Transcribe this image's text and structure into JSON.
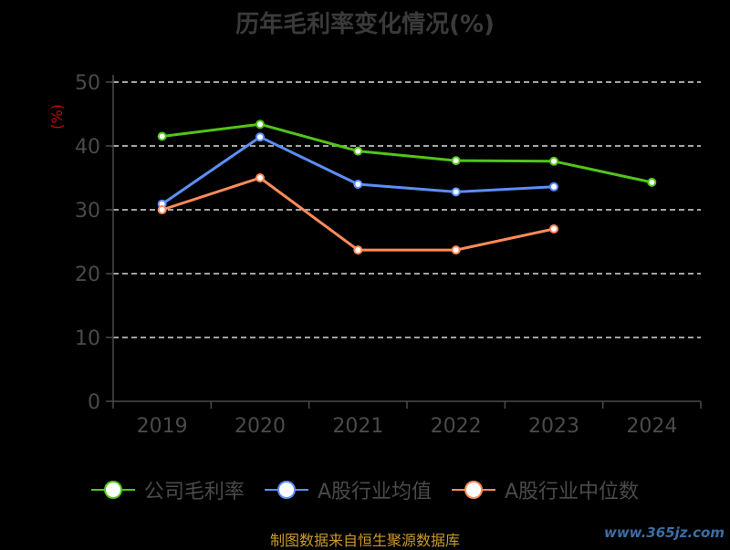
{
  "chart_data": {
    "type": "line",
    "title": "历年毛利率变化情况(%)",
    "ylabel": "(%)",
    "xlabel": "",
    "categories": [
      "2019",
      "2020",
      "2021",
      "2022",
      "2023",
      "2024"
    ],
    "ylim": [
      0,
      50
    ],
    "yticks": [
      0,
      10,
      20,
      30,
      40,
      50
    ],
    "grid": true,
    "legend_position": "bottom",
    "series": [
      {
        "name": "公司毛利率",
        "color": "#52c41a",
        "values": [
          41.5,
          43.4,
          39.2,
          37.7,
          37.6,
          34.3
        ]
      },
      {
        "name": "A股行业均值",
        "color": "#5b8ff9",
        "values": [
          30.9,
          41.4,
          34.0,
          32.8,
          33.6,
          null
        ]
      },
      {
        "name": "A股行业中位数",
        "color": "#ff8c5a",
        "values": [
          30.0,
          35.0,
          23.7,
          23.7,
          27.0,
          null
        ]
      }
    ]
  },
  "footer": {
    "source": "制图数据来自恒生聚源数据库",
    "watermark": "www.365jz.com"
  }
}
